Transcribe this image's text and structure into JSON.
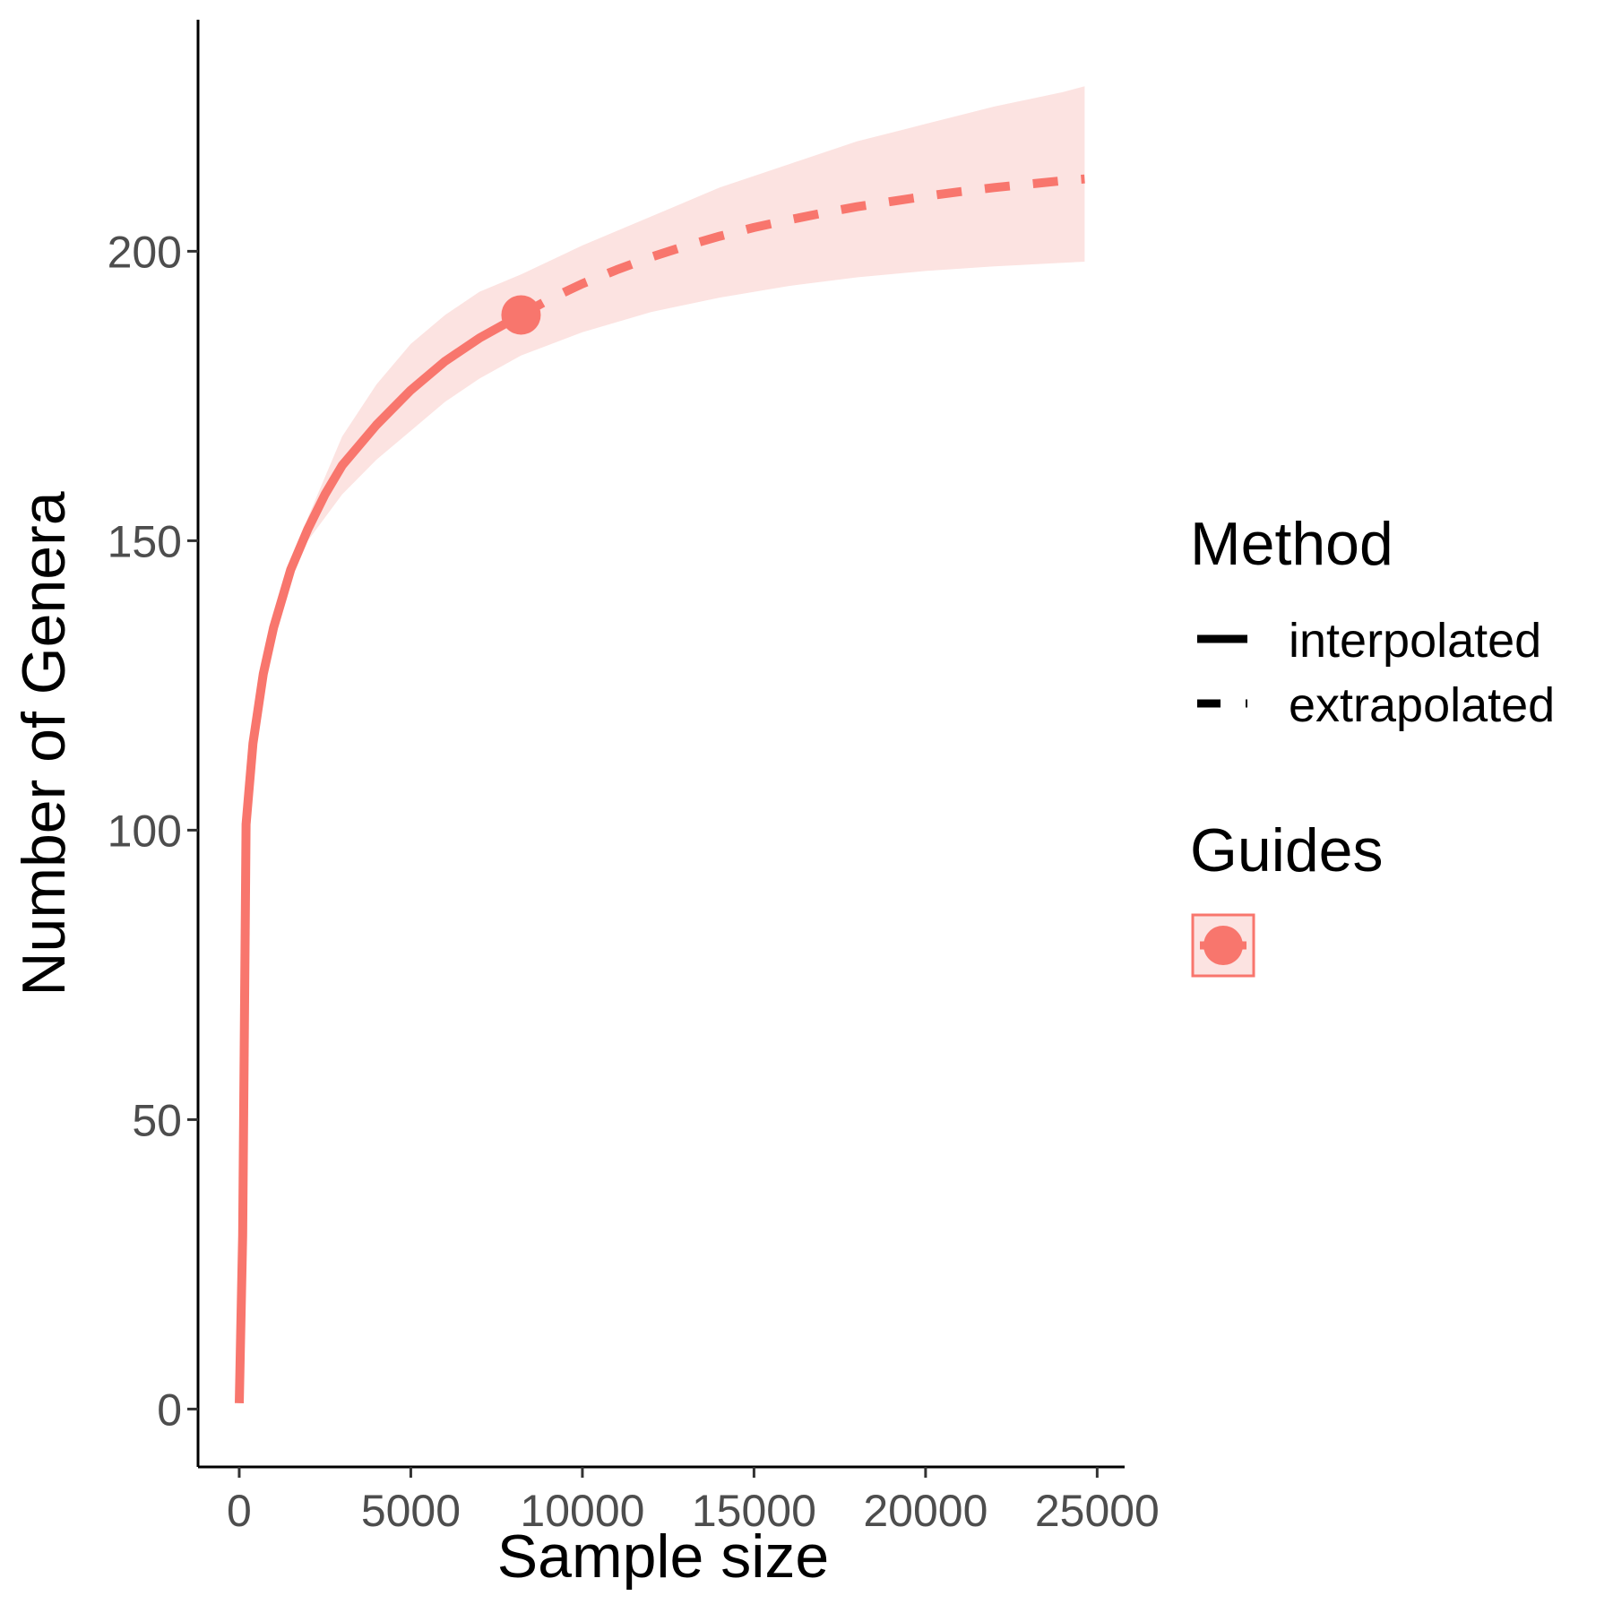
{
  "chart_data": {
    "type": "line",
    "title": "",
    "xlabel": "Sample size",
    "ylabel": "Number of Genera",
    "xlim": [
      -1200,
      25800
    ],
    "ylim": [
      -10,
      240
    ],
    "xticks": [
      0,
      5000,
      10000,
      15000,
      20000,
      25000
    ],
    "yticks": [
      0,
      50,
      100,
      150,
      200
    ],
    "grid": false,
    "color": "#F8766D",
    "band_color": "#FCE3E1",
    "series": [
      {
        "name": "interpolated",
        "linestyle": "solid",
        "x": [
          1,
          100,
          200,
          400,
          700,
          1000,
          1500,
          2000,
          2500,
          3000,
          4000,
          5000,
          6000,
          7000,
          8212
        ],
        "y": [
          1,
          30,
          101,
          115,
          127,
          135,
          145,
          152,
          158,
          163,
          170,
          176,
          181,
          185,
          189
        ]
      },
      {
        "name": "extrapolated",
        "linestyle": "dashed",
        "x": [
          8212,
          9000,
          10000,
          11000,
          12000,
          13000,
          14000,
          15000,
          16000,
          17000,
          18000,
          19000,
          20000,
          21000,
          22000,
          23000,
          24000,
          24636
        ],
        "y": [
          189,
          191.6,
          194.4,
          196.8,
          199,
          200.9,
          202.6,
          204.1,
          205.4,
          206.6,
          207.7,
          208.6,
          209.5,
          210.3,
          211,
          211.6,
          212.2,
          212.5
        ]
      }
    ],
    "confidence_band": {
      "x": [
        1500,
        2000,
        3000,
        4000,
        5000,
        6000,
        7000,
        8212,
        10000,
        12000,
        14000,
        16000,
        18000,
        20000,
        22000,
        24000,
        24636
      ],
      "lower": [
        145,
        150,
        158,
        164,
        169,
        174,
        178,
        182,
        186,
        189.5,
        192,
        194,
        195.5,
        196.6,
        197.4,
        198,
        198.2
      ],
      "upper": [
        145,
        154,
        168,
        177,
        184,
        189,
        193,
        196,
        201,
        206,
        211,
        215,
        219,
        222,
        225,
        227.5,
        228.5
      ]
    },
    "reference_point": {
      "name": "observed",
      "x": 8212,
      "y": 189
    },
    "legend": {
      "placement": "right",
      "method_title": "Method",
      "method_entries": [
        "interpolated",
        "extrapolated"
      ],
      "guides_title": "Guides"
    }
  }
}
